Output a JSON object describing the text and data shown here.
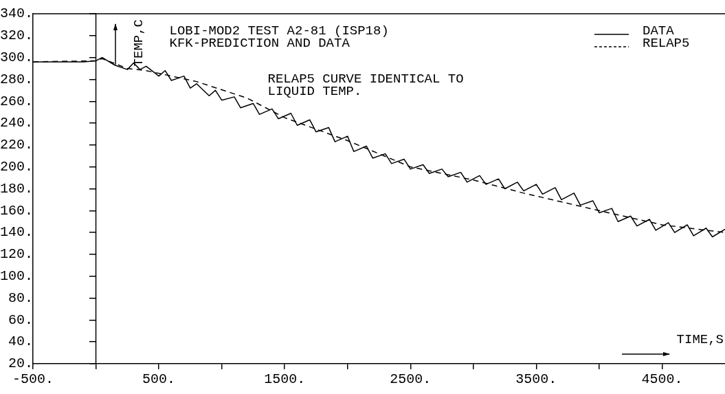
{
  "chart_data": {
    "type": "line",
    "title": "LOBI-MOD2 TEST A2-81 (ISP18)",
    "subtitle": "KFK-PREDICTION AND DATA",
    "xlabel": "TIME,S",
    "ylabel": "TEMP,C",
    "annotations": [
      "RELAP5 CURVE IDENTICAL TO LIQUID TEMP."
    ],
    "ref_lines": [
      {
        "axis": "x",
        "value": 0,
        "color": "#000000",
        "line_style": "solid"
      }
    ],
    "xlim": [
      -500,
      5000
    ],
    "xticks": [
      {
        "value": -500,
        "label": "-500."
      },
      {
        "value": 0,
        "label": null
      },
      {
        "value": 500,
        "label": "500."
      },
      {
        "value": 1000,
        "label": null
      },
      {
        "value": 1500,
        "label": "1500."
      },
      {
        "value": 2000,
        "label": null
      },
      {
        "value": 2500,
        "label": "2500."
      },
      {
        "value": 3000,
        "label": null
      },
      {
        "value": 3500,
        "label": "3500."
      },
      {
        "value": 4000,
        "label": null
      },
      {
        "value": 4500,
        "label": "4500."
      }
    ],
    "ylim": [
      20,
      340
    ],
    "yticks": [
      {
        "value": 20,
        "label": "20."
      },
      {
        "value": 40,
        "label": "40."
      },
      {
        "value": 60,
        "label": "60."
      },
      {
        "value": 80,
        "label": "80."
      },
      {
        "value": 100,
        "label": "100."
      },
      {
        "value": 120,
        "label": "120."
      },
      {
        "value": 140,
        "label": "140."
      },
      {
        "value": 160,
        "label": "160."
      },
      {
        "value": 180,
        "label": "180."
      },
      {
        "value": 200,
        "label": "200."
      },
      {
        "value": 220,
        "label": "220."
      },
      {
        "value": 240,
        "label": "240."
      },
      {
        "value": 260,
        "label": "260."
      },
      {
        "value": 280,
        "label": "280."
      },
      {
        "value": 300,
        "label": "300."
      },
      {
        "value": 320,
        "label": "320."
      },
      {
        "value": 340,
        "label": "340."
      }
    ],
    "grid": false,
    "legend": "top right",
    "marker": "none",
    "series": [
      {
        "name": "DATA",
        "color": "#000000",
        "line_style": "solid",
        "x": [
          -500,
          -100,
          0,
          50,
          150,
          250,
          300,
          350,
          400,
          500,
          550,
          600,
          700,
          750,
          800,
          900,
          950,
          1000,
          1100,
          1150,
          1250,
          1300,
          1400,
          1450,
          1550,
          1600,
          1700,
          1750,
          1850,
          1900,
          2000,
          2050,
          2150,
          2200,
          2300,
          2350,
          2450,
          2500,
          2600,
          2650,
          2750,
          2800,
          2900,
          2950,
          3050,
          3100,
          3200,
          3250,
          3350,
          3400,
          3500,
          3550,
          3650,
          3700,
          3800,
          3850,
          3950,
          4000,
          4100,
          4150,
          4250,
          4300,
          4400,
          4450,
          4550,
          4600,
          4700,
          4750,
          4850,
          4900,
          5000
        ],
        "values": [
          296,
          296,
          297,
          300,
          293,
          289,
          295,
          289,
          292,
          283,
          288,
          279,
          283,
          272,
          276,
          265,
          270,
          261,
          264,
          254,
          258,
          248,
          253,
          244,
          249,
          238,
          243,
          232,
          236,
          223,
          228,
          214,
          219,
          208,
          212,
          203,
          207,
          198,
          202,
          194,
          198,
          191,
          195,
          186,
          192,
          184,
          189,
          180,
          186,
          178,
          184,
          175,
          181,
          170,
          176,
          165,
          169,
          158,
          162,
          150,
          155,
          146,
          152,
          142,
          149,
          140,
          147,
          137,
          144,
          136,
          143
        ]
      },
      {
        "name": "RELAP5",
        "color": "#000000",
        "line_style": "dashed",
        "x": [
          -500,
          0,
          50,
          250,
          400,
          800,
          1200,
          1500,
          2000,
          2500,
          3000,
          3400,
          3700,
          4000,
          4500,
          5000
        ],
        "values": [
          296,
          297,
          299,
          290,
          288,
          278,
          263,
          245,
          224,
          200,
          188,
          176,
          168,
          160,
          147,
          140
        ]
      }
    ]
  }
}
